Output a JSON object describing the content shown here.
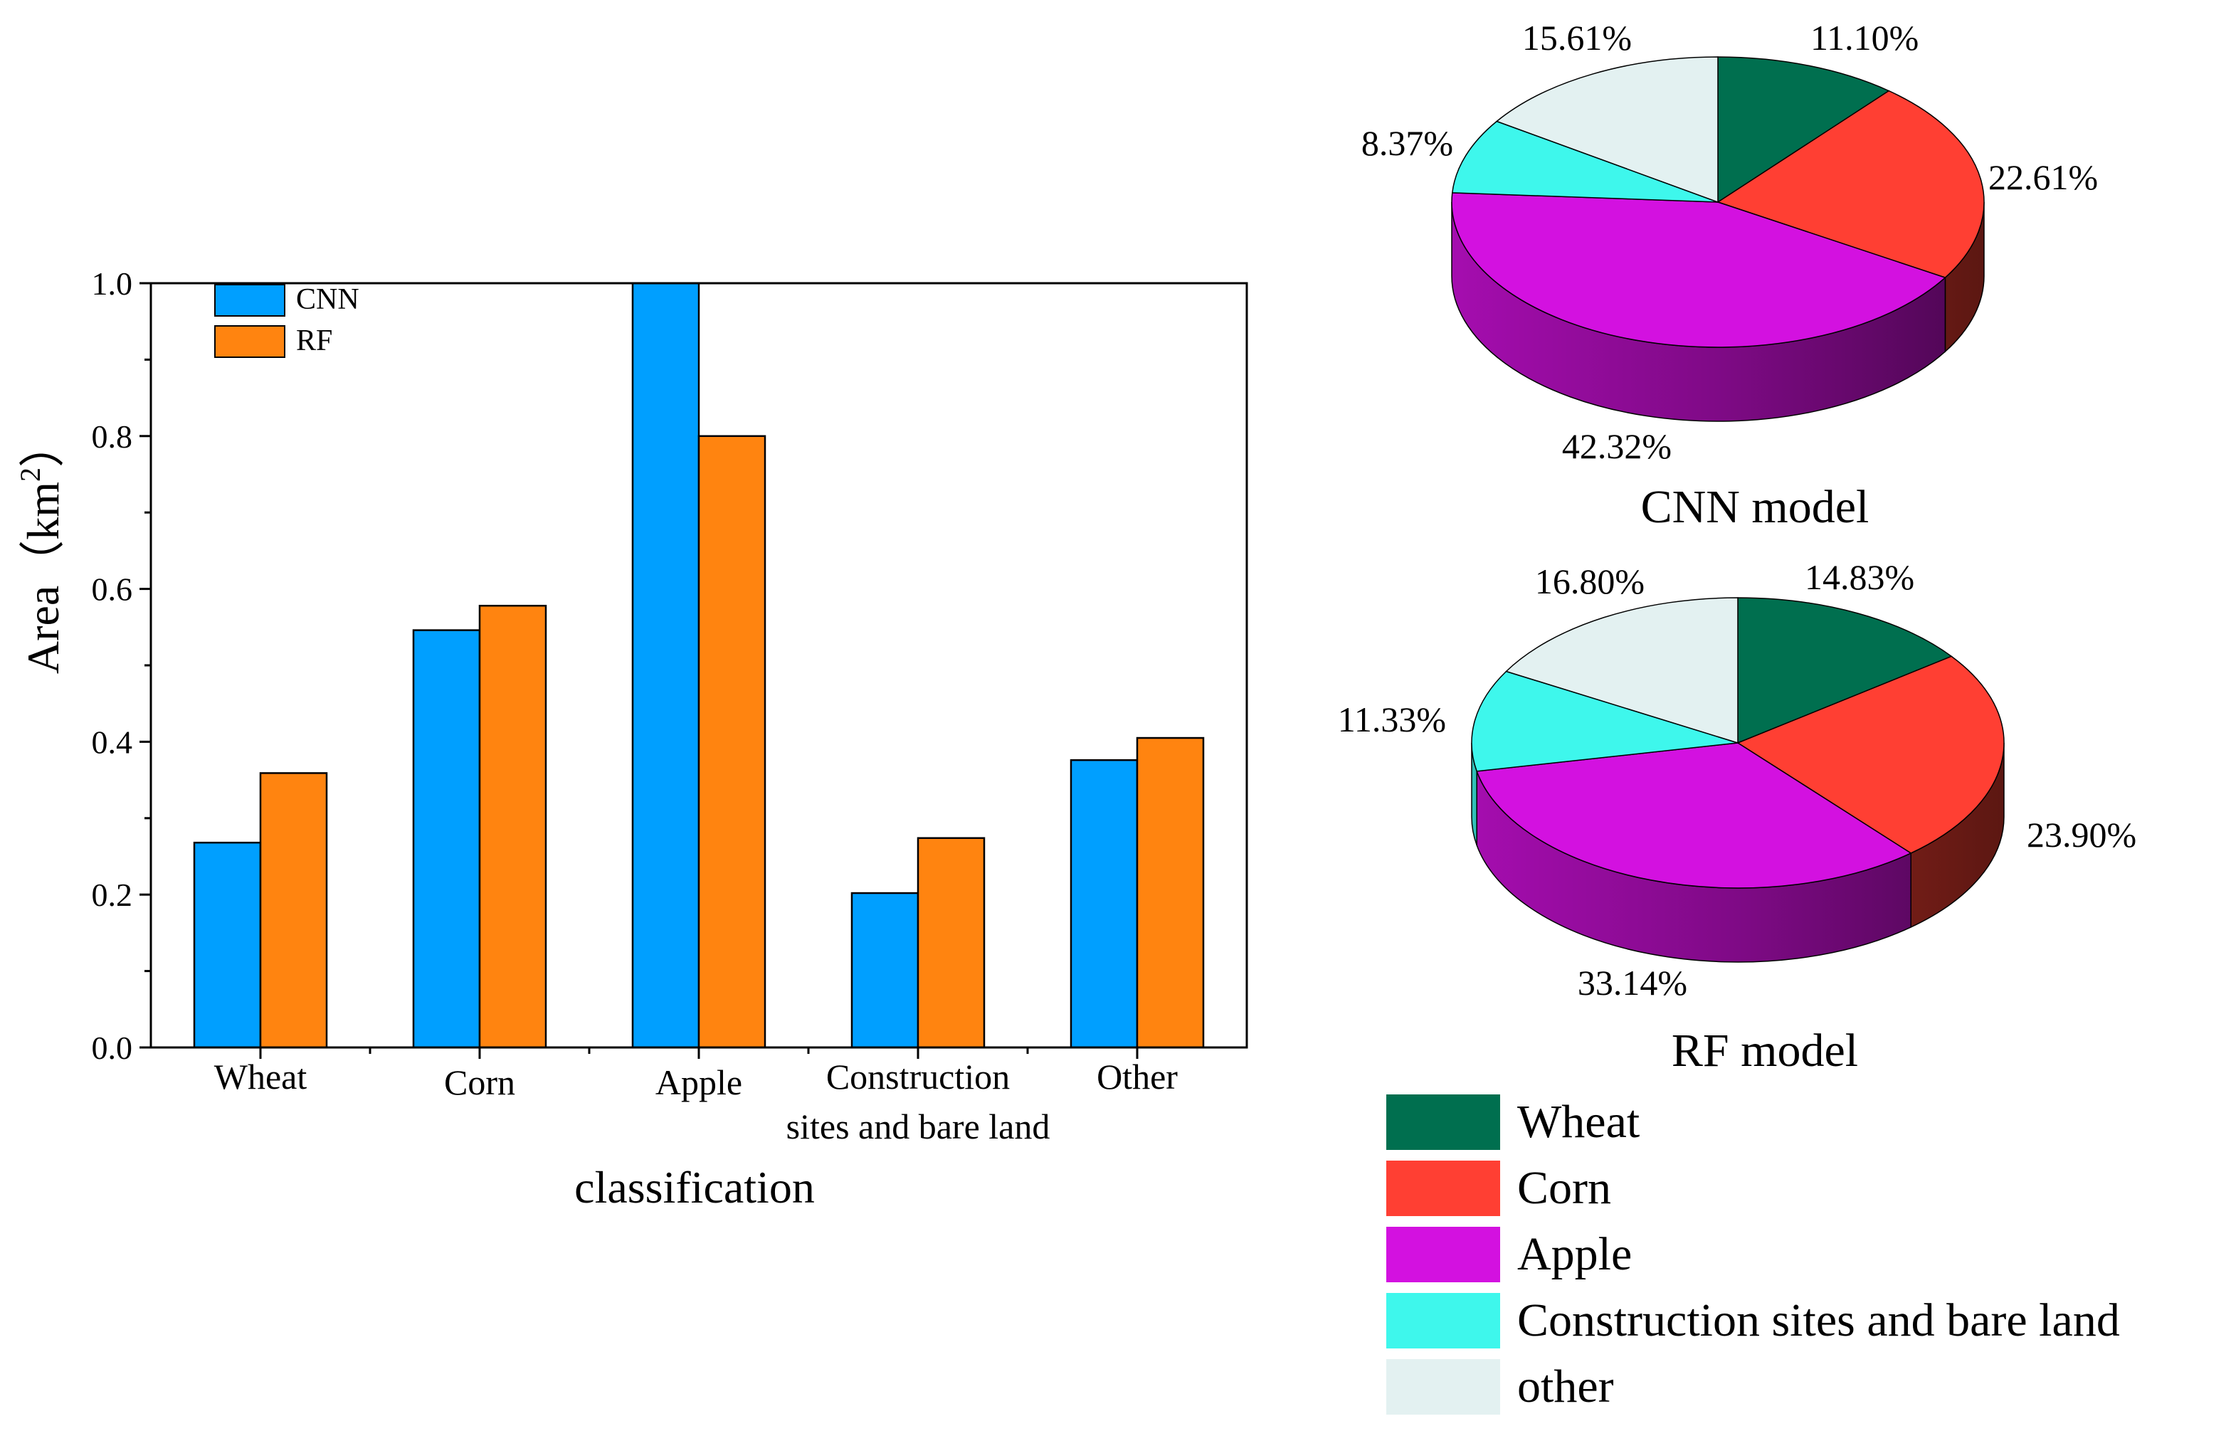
{
  "chart_data": [
    {
      "type": "bar",
      "title": "",
      "xlabel": "classification",
      "ylabel_main": "Area（km",
      "ylabel_sup": "2",
      "ylabel_end": "）",
      "ylim": [
        0,
        1.0
      ],
      "yticks": [
        "0.0",
        "0.2",
        "0.4",
        "0.6",
        "0.8",
        "1.0"
      ],
      "categories": [
        "Wheat",
        "Corn",
        "Apple",
        "Construction",
        "Other"
      ],
      "category_line2": [
        "",
        "",
        "",
        "sites and bare land",
        ""
      ],
      "series": [
        {
          "name": "CNN",
          "color": "#009fff",
          "values": [
            0.268,
            0.546,
            1.0,
            0.202,
            0.376
          ]
        },
        {
          "name": "RF",
          "color": "#ff8410",
          "values": [
            0.359,
            0.578,
            0.8,
            0.274,
            0.405
          ]
        }
      ],
      "legend_position": "top-left"
    },
    {
      "type": "pie",
      "title": "CNN model",
      "labels": [
        "Wheat",
        "Corn",
        "Apple",
        "Construction sites and bare land",
        "other"
      ],
      "values": [
        11.1,
        22.61,
        42.32,
        8.37,
        15.61
      ],
      "value_labels": [
        "11.10%",
        "22.61%",
        "42.32%",
        "8.37%",
        "15.61%"
      ],
      "colors": [
        "#006f4f",
        "#ff3f33",
        "#d311e0",
        "#3ef7ec",
        "#e3f1f1"
      ]
    },
    {
      "type": "pie",
      "title": "RF model",
      "labels": [
        "Wheat",
        "Corn",
        "Apple",
        "Construction sites and bare land",
        "other"
      ],
      "values": [
        14.83,
        23.9,
        33.14,
        11.33,
        16.8
      ],
      "value_labels": [
        "14.83%",
        "23.90%",
        "33.14%",
        "11.33%",
        "16.80%"
      ],
      "colors": [
        "#006f4f",
        "#ff3f33",
        "#d311e0",
        "#3ef7ec",
        "#e3f1f1"
      ]
    }
  ],
  "pie_legend": {
    "items": [
      {
        "label": "Wheat",
        "color": "#006f4f"
      },
      {
        "label": "Corn",
        "color": "#ff3f33"
      },
      {
        "label": "Apple",
        "color": "#d311e0"
      },
      {
        "label": "Construction  sites and bare land",
        "color": "#3ef7ec"
      },
      {
        "label": "other",
        "color": "#e3f1f1"
      }
    ]
  }
}
